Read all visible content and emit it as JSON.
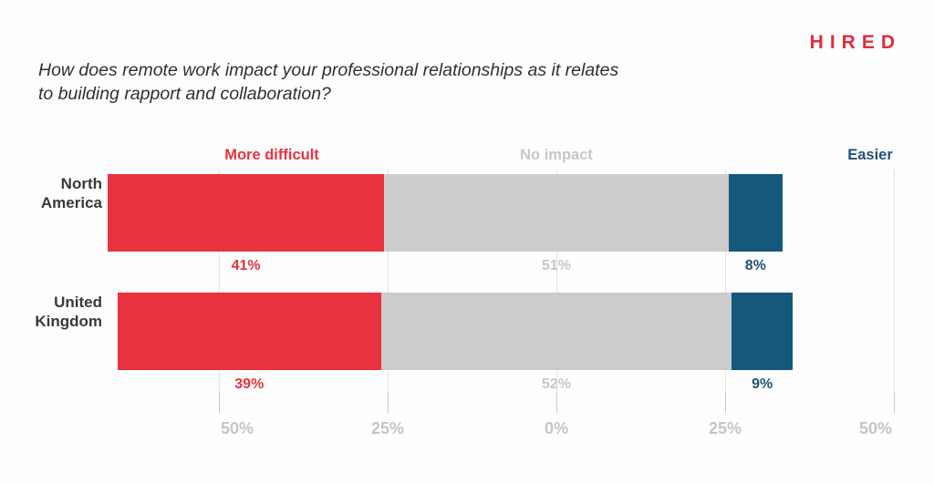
{
  "brand": {
    "logo": "HIRED"
  },
  "title": {
    "line1": "How does remote work impact your professional relationships as it relates",
    "line2": "to building rapport and collaboration?"
  },
  "chart_data": {
    "type": "bar",
    "variant": "horizontal-diverging-stacked",
    "title": "How does remote work impact your professional relationships as it relates to building rapport and collaboration?",
    "categories": [
      "North America",
      "United Kingdom"
    ],
    "series": [
      {
        "name": "More difficult",
        "values": [
          41,
          39
        ],
        "color": "#e8323f",
        "label_color": "#e8323f"
      },
      {
        "name": "No impact",
        "values": [
          51,
          52
        ],
        "color": "#cccccc",
        "label_color": "#c7c7c7"
      },
      {
        "name": "Easier",
        "values": [
          8,
          9
        ],
        "color": "#15587c",
        "label_color": "#1e5278"
      }
    ],
    "value_suffix": "%",
    "x_axis": {
      "tick_values": [
        -50,
        -25,
        0,
        25,
        50
      ],
      "tick_labels": [
        "50%",
        "25%",
        "0%",
        "25%",
        "50%"
      ]
    },
    "legend_position": "top",
    "grid": true,
    "anchor_note": "No impact segment centered on 0% axis"
  },
  "colors": {
    "background": "#fefefe",
    "logo_red": "#e22b3a",
    "title_text": "#303030",
    "category_text": "#393939",
    "axis_text": "#c5c5c5",
    "gridline": "#e4e4e4",
    "tick": "#c9c9c9"
  }
}
